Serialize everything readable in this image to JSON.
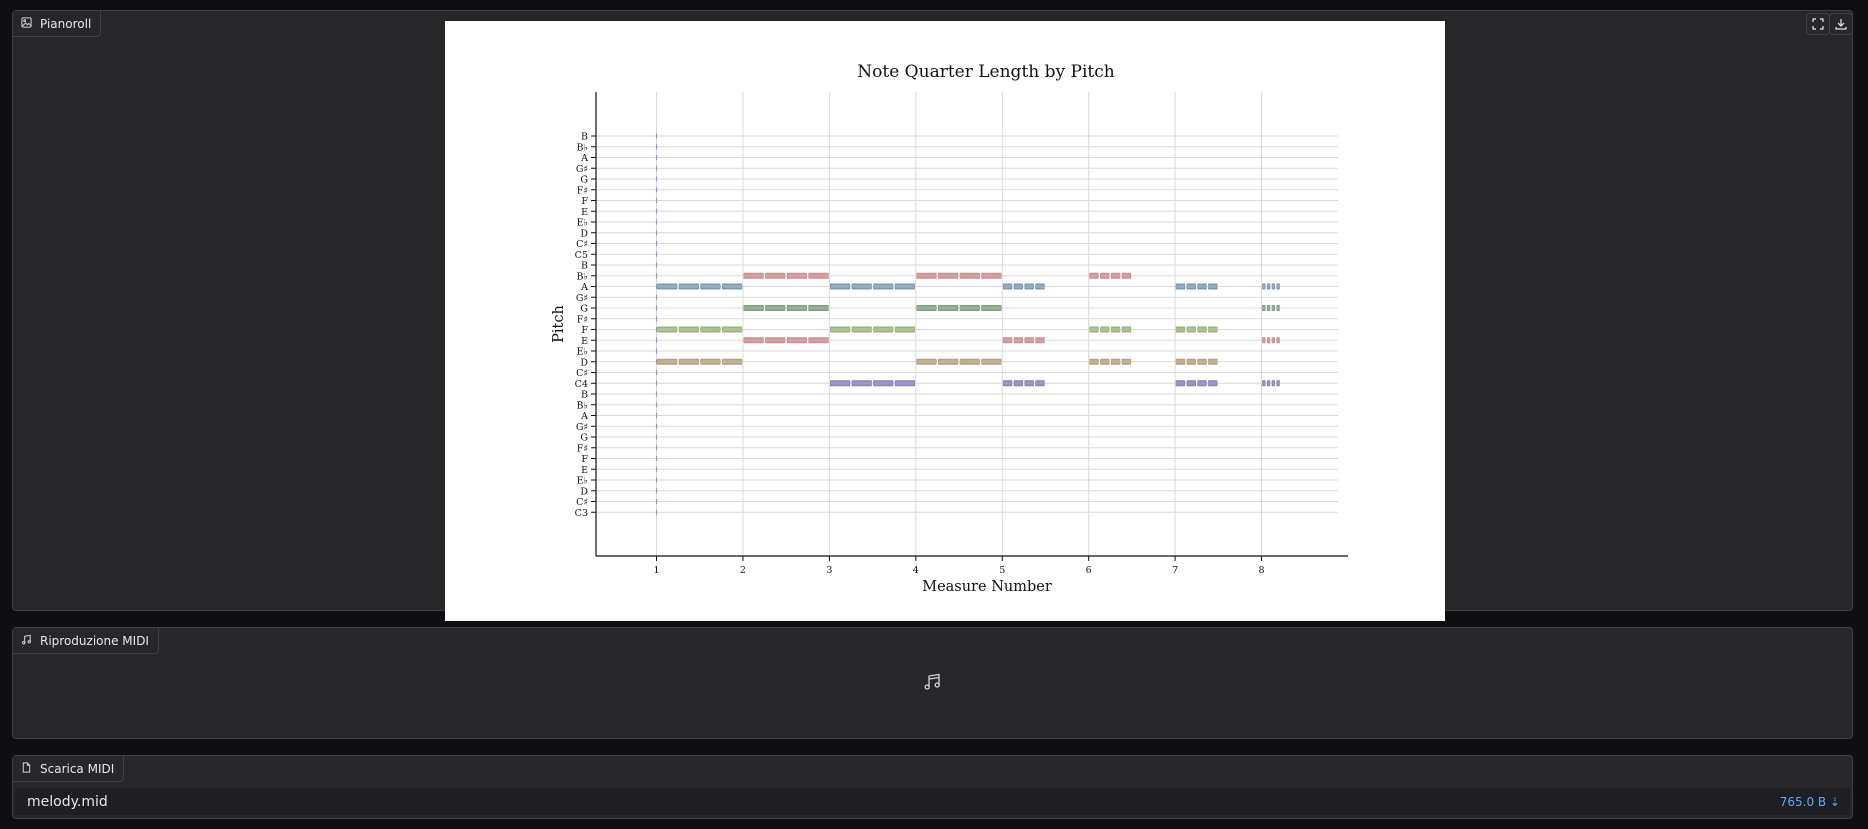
{
  "pianoroll": {
    "label": "Pianoroll",
    "icon": "image-icon",
    "fullscreen_icon": "fullscreen-icon",
    "download_icon": "download-icon"
  },
  "chart_data": {
    "type": "pianoroll",
    "title": "Note Quarter Length by Pitch",
    "xlabel": "Measure Number",
    "ylabel": "Pitch",
    "x_ticks": [
      "1",
      "2",
      "3",
      "4",
      "5",
      "6",
      "7",
      "8"
    ],
    "xlim": [
      0.3,
      9.0
    ],
    "y_ticks": [
      "B",
      "B♭",
      "A",
      "G♯",
      "G",
      "F♯",
      "F",
      "E",
      "E♭",
      "D",
      "C♯",
      "C5",
      "B",
      "B♭",
      "A",
      "G♯",
      "G",
      "F♯",
      "F",
      "E",
      "E♭",
      "D",
      "C♯",
      "C4",
      "B",
      "B♭",
      "A",
      "G♯",
      "G",
      "F♯",
      "F",
      "E",
      "E♭",
      "D",
      "C♯",
      "C3"
    ],
    "grid": true,
    "notes": [
      {
        "pitch": "A4",
        "measure_start": 1.0,
        "measure_end": 2.0,
        "color": "#7f99b3"
      },
      {
        "pitch": "F4",
        "measure_start": 1.0,
        "measure_end": 2.0,
        "color": "#9ab47f"
      },
      {
        "pitch": "D4",
        "measure_start": 1.0,
        "measure_end": 2.0,
        "color": "#b3a17f"
      },
      {
        "pitch": "B♭4",
        "measure_start": 2.0,
        "measure_end": 3.0,
        "color": "#c98f8f"
      },
      {
        "pitch": "G4",
        "measure_start": 2.0,
        "measure_end": 3.0,
        "color": "#7fa37f"
      },
      {
        "pitch": "E4",
        "measure_start": 2.0,
        "measure_end": 3.0,
        "color": "#c98f8f"
      },
      {
        "pitch": "A4",
        "measure_start": 3.0,
        "measure_end": 4.0,
        "color": "#7f99b3"
      },
      {
        "pitch": "F4",
        "measure_start": 3.0,
        "measure_end": 4.0,
        "color": "#9ab47f"
      },
      {
        "pitch": "C4",
        "measure_start": 3.0,
        "measure_end": 4.0,
        "color": "#8a82b3"
      },
      {
        "pitch": "B♭4",
        "measure_start": 4.0,
        "measure_end": 5.0,
        "color": "#c98f8f"
      },
      {
        "pitch": "G4",
        "measure_start": 4.0,
        "measure_end": 5.0,
        "color": "#7fa37f"
      },
      {
        "pitch": "D4",
        "measure_start": 4.0,
        "measure_end": 5.0,
        "color": "#b3a17f"
      },
      {
        "pitch": "A4",
        "measure_start": 5.0,
        "measure_end": 5.5,
        "color": "#7f99b3"
      },
      {
        "pitch": "E4",
        "measure_start": 5.0,
        "measure_end": 5.5,
        "color": "#c98f8f"
      },
      {
        "pitch": "C4",
        "measure_start": 5.0,
        "measure_end": 5.5,
        "color": "#8a82b3"
      },
      {
        "pitch": "B♭4",
        "measure_start": 6.0,
        "measure_end": 6.5,
        "color": "#c98f8f"
      },
      {
        "pitch": "F4",
        "measure_start": 6.0,
        "measure_end": 6.5,
        "color": "#9ab47f"
      },
      {
        "pitch": "D4",
        "measure_start": 6.0,
        "measure_end": 6.5,
        "color": "#b3a17f"
      },
      {
        "pitch": "A4",
        "measure_start": 7.0,
        "measure_end": 7.5,
        "color": "#7f99b3"
      },
      {
        "pitch": "F4",
        "measure_start": 7.0,
        "measure_end": 7.5,
        "color": "#9ab47f"
      },
      {
        "pitch": "D4",
        "measure_start": 7.0,
        "measure_end": 7.5,
        "color": "#b3a17f"
      },
      {
        "pitch": "C4",
        "measure_start": 7.0,
        "measure_end": 7.5,
        "color": "#8a82b3"
      },
      {
        "pitch": "A4",
        "measure_start": 8.0,
        "measure_end": 8.22,
        "color": "#7f99b3"
      },
      {
        "pitch": "G4",
        "measure_start": 8.0,
        "measure_end": 8.22,
        "color": "#7fa37f"
      },
      {
        "pitch": "E4",
        "measure_start": 8.0,
        "measure_end": 8.22,
        "color": "#c98f8f"
      },
      {
        "pitch": "C4",
        "measure_start": 8.0,
        "measure_end": 8.22,
        "color": "#8a82b3"
      }
    ]
  },
  "midi_player": {
    "label": "Riproduzione MIDI",
    "icon": "music-note-icon",
    "center_icon": "music-note-icon"
  },
  "midi_download": {
    "label": "Scarica MIDI",
    "icon": "file-icon",
    "file_name": "melody.mid",
    "file_size": "765.0 B ⇣"
  }
}
